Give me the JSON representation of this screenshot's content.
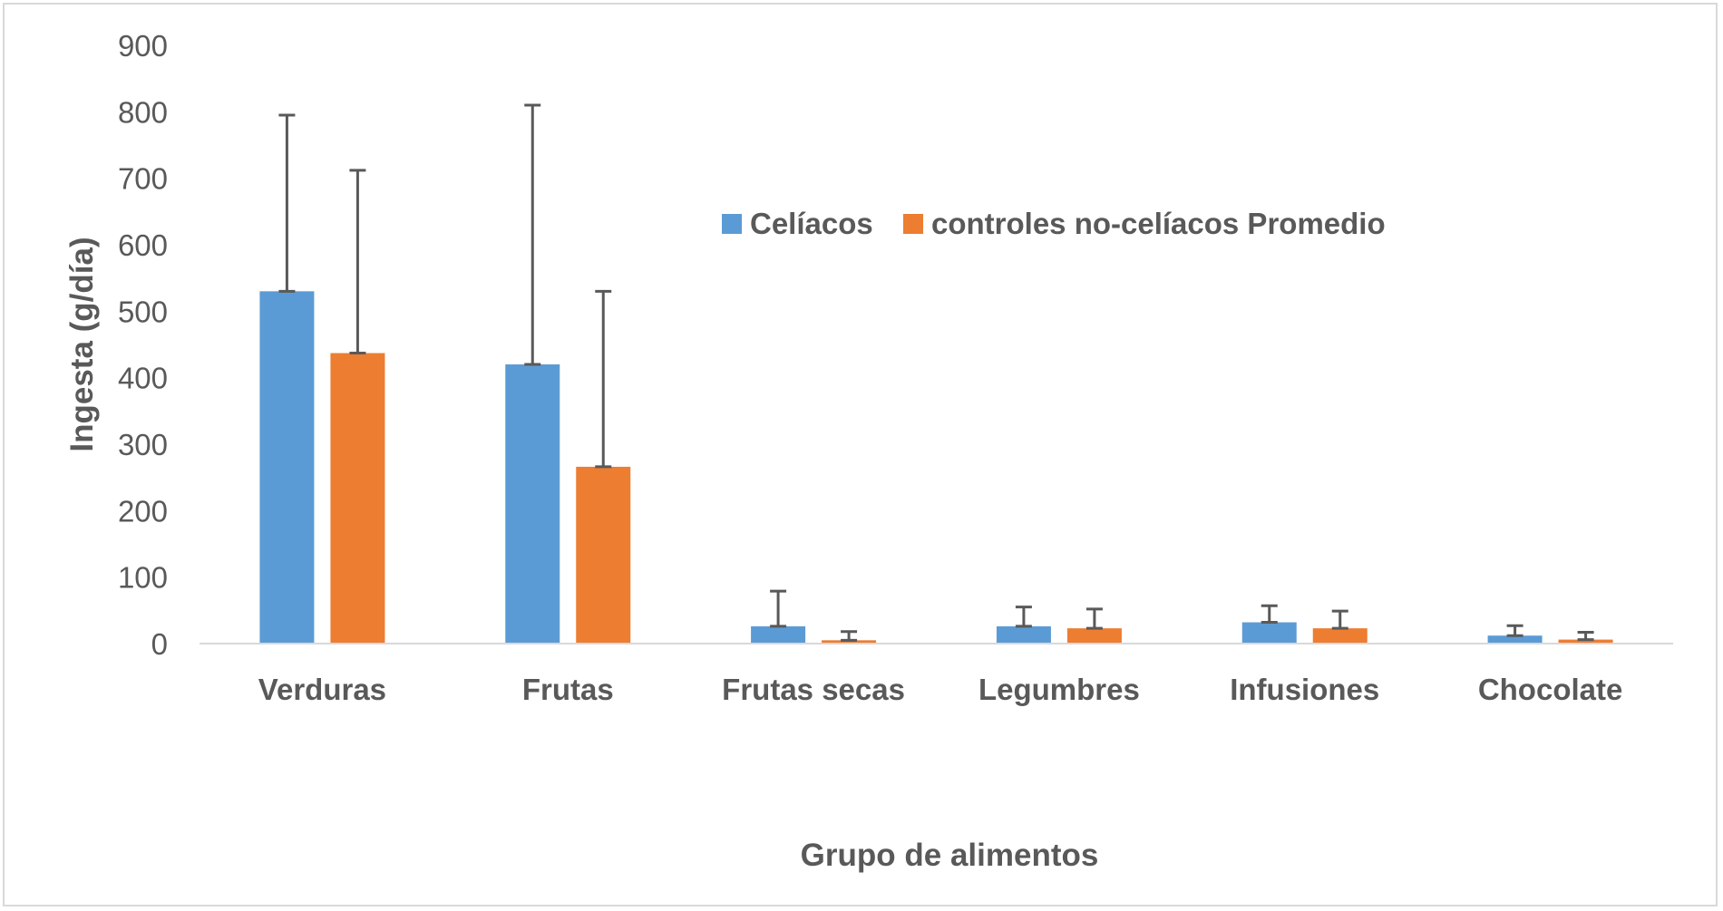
{
  "chart_data": {
    "type": "bar",
    "title": "",
    "xlabel": "Grupo de alimentos",
    "ylabel": "Ingesta (g/día)",
    "ylim": [
      0,
      900
    ],
    "yticks": [
      0,
      100,
      200,
      300,
      400,
      500,
      600,
      700,
      800,
      900
    ],
    "grid": false,
    "legend_position": "top-center",
    "categories": [
      "Verduras",
      "Frutas",
      "Frutas secas",
      "Legumbres",
      "Infusiones",
      "Chocolate"
    ],
    "series": [
      {
        "name": "Celíacos",
        "color": "#5b9bd5",
        "values": [
          530,
          420,
          26,
          26,
          32,
          12
        ],
        "error_upper": [
          265,
          390,
          53,
          29,
          25,
          15
        ]
      },
      {
        "name": "controles no-celíacos Promedio",
        "color": "#ed7d31",
        "values": [
          437,
          266,
          5,
          23,
          23,
          6
        ],
        "error_upper": [
          275,
          264,
          13,
          29,
          26,
          11
        ]
      }
    ]
  }
}
